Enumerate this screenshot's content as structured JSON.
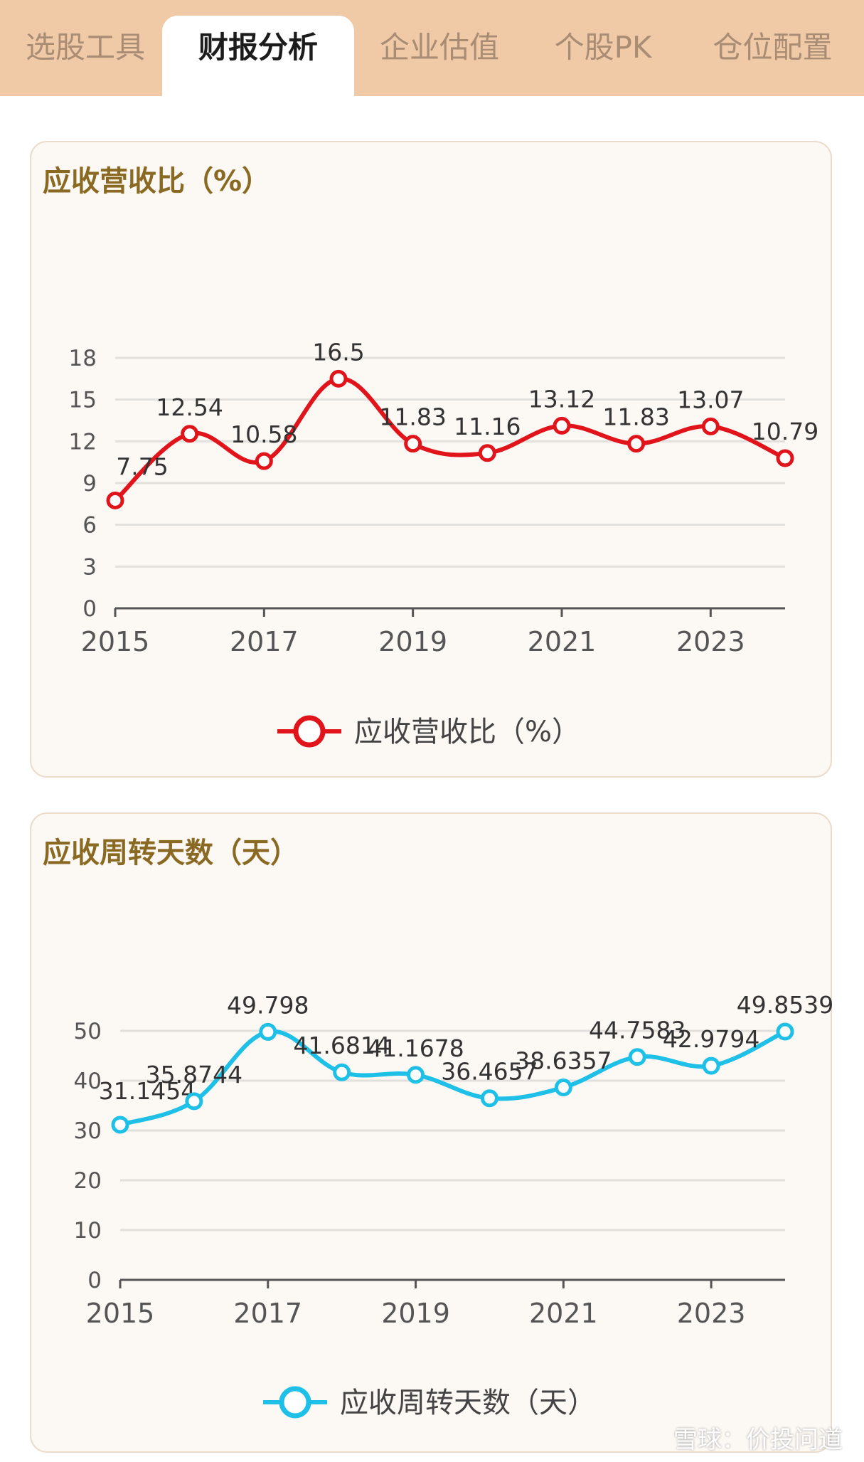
{
  "tabs": [
    {
      "label": "选股工具",
      "active": false
    },
    {
      "label": "财报分析",
      "active": true
    },
    {
      "label": "企业估值",
      "active": false
    },
    {
      "label": "个股PK",
      "active": false
    },
    {
      "label": "仓位配置",
      "active": false
    }
  ],
  "watermark": "雪球：价投问道",
  "chart_data": [
    {
      "type": "line",
      "title": "应收营收比（%）",
      "x": [
        2015,
        2016,
        2017,
        2018,
        2019,
        2020,
        2021,
        2022,
        2023,
        2024
      ],
      "x_tick_labels": [
        "2015",
        "2017",
        "2019",
        "2021",
        "2023"
      ],
      "y_ticks": [
        0,
        3,
        6,
        9,
        12,
        15,
        18
      ],
      "ylim": [
        0,
        18
      ],
      "series": [
        {
          "name": "应收营收比（%）",
          "color": "#e0141a",
          "values": [
            7.75,
            12.54,
            10.58,
            16.5,
            11.83,
            11.16,
            13.12,
            11.83,
            13.07,
            10.79
          ]
        }
      ],
      "data_labels": [
        "7.75",
        "12.54",
        "10.58",
        "16.5",
        "11.83",
        "11.16",
        "13.12",
        "11.83",
        "13.07",
        "10.79"
      ],
      "grid": true,
      "legend": "bottom"
    },
    {
      "type": "line",
      "title": "应收周转天数（天）",
      "x": [
        2015,
        2016,
        2017,
        2018,
        2019,
        2020,
        2021,
        2022,
        2023,
        2024
      ],
      "x_tick_labels": [
        "2015",
        "2017",
        "2019",
        "2021",
        "2023"
      ],
      "y_ticks": [
        0,
        10,
        20,
        30,
        40,
        50
      ],
      "ylim": [
        0,
        50
      ],
      "series": [
        {
          "name": "应收周转天数（天）",
          "color": "#1fc0e8",
          "values": [
            31.1454,
            35.8744,
            49.798,
            41.6814,
            41.1678,
            36.4657,
            38.6357,
            44.7583,
            42.9794,
            49.8539
          ]
        }
      ],
      "data_labels": [
        "31.1454",
        "35.8744",
        "49.798",
        "41.6814",
        "41.1678",
        "36.4657",
        "38.6357",
        "44.7583",
        "42.9794",
        "49.8539"
      ],
      "grid": true,
      "legend": "bottom"
    }
  ]
}
